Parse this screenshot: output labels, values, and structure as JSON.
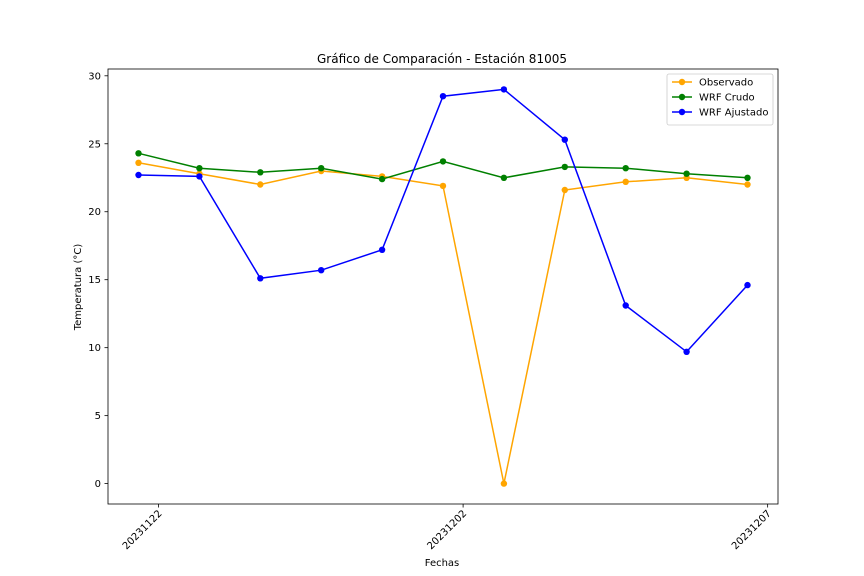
{
  "chart_data": {
    "type": "line",
    "title": "Gráfico de Comparación - Estación 81005",
    "xlabel": "Fechas",
    "ylabel": "Temperatura (°C)",
    "x": [
      0,
      1,
      2,
      3,
      4,
      5,
      6,
      7,
      8,
      9,
      10
    ],
    "xlim": [
      -0.5,
      10.5
    ],
    "xticks": [
      {
        "x": 0.33,
        "label": "20231122"
      },
      {
        "x": 5.33,
        "label": "20231202"
      },
      {
        "x": 10.33,
        "label": "20231207"
      }
    ],
    "ylim": [
      -1.5,
      30.5
    ],
    "yticks": [
      0,
      5,
      10,
      15,
      20,
      25,
      30
    ],
    "grid": false,
    "legend_position": "top-right",
    "series": [
      {
        "name": "Observado",
        "color": "#FFA500",
        "marker": "circle",
        "values": [
          23.6,
          22.8,
          22.0,
          23.0,
          22.6,
          21.9,
          0.0,
          21.6,
          22.2,
          22.5,
          22.0
        ]
      },
      {
        "name": "WRF Crudo",
        "color": "#008000",
        "marker": "circle",
        "values": [
          24.3,
          23.2,
          22.9,
          23.2,
          22.4,
          23.7,
          22.5,
          23.3,
          23.2,
          22.8,
          22.5
        ]
      },
      {
        "name": "WRF Ajustado",
        "color": "#0000FF",
        "marker": "circle",
        "values": [
          22.7,
          22.6,
          15.1,
          15.7,
          17.2,
          28.5,
          29.0,
          25.3,
          13.1,
          9.7,
          14.6
        ]
      }
    ]
  }
}
